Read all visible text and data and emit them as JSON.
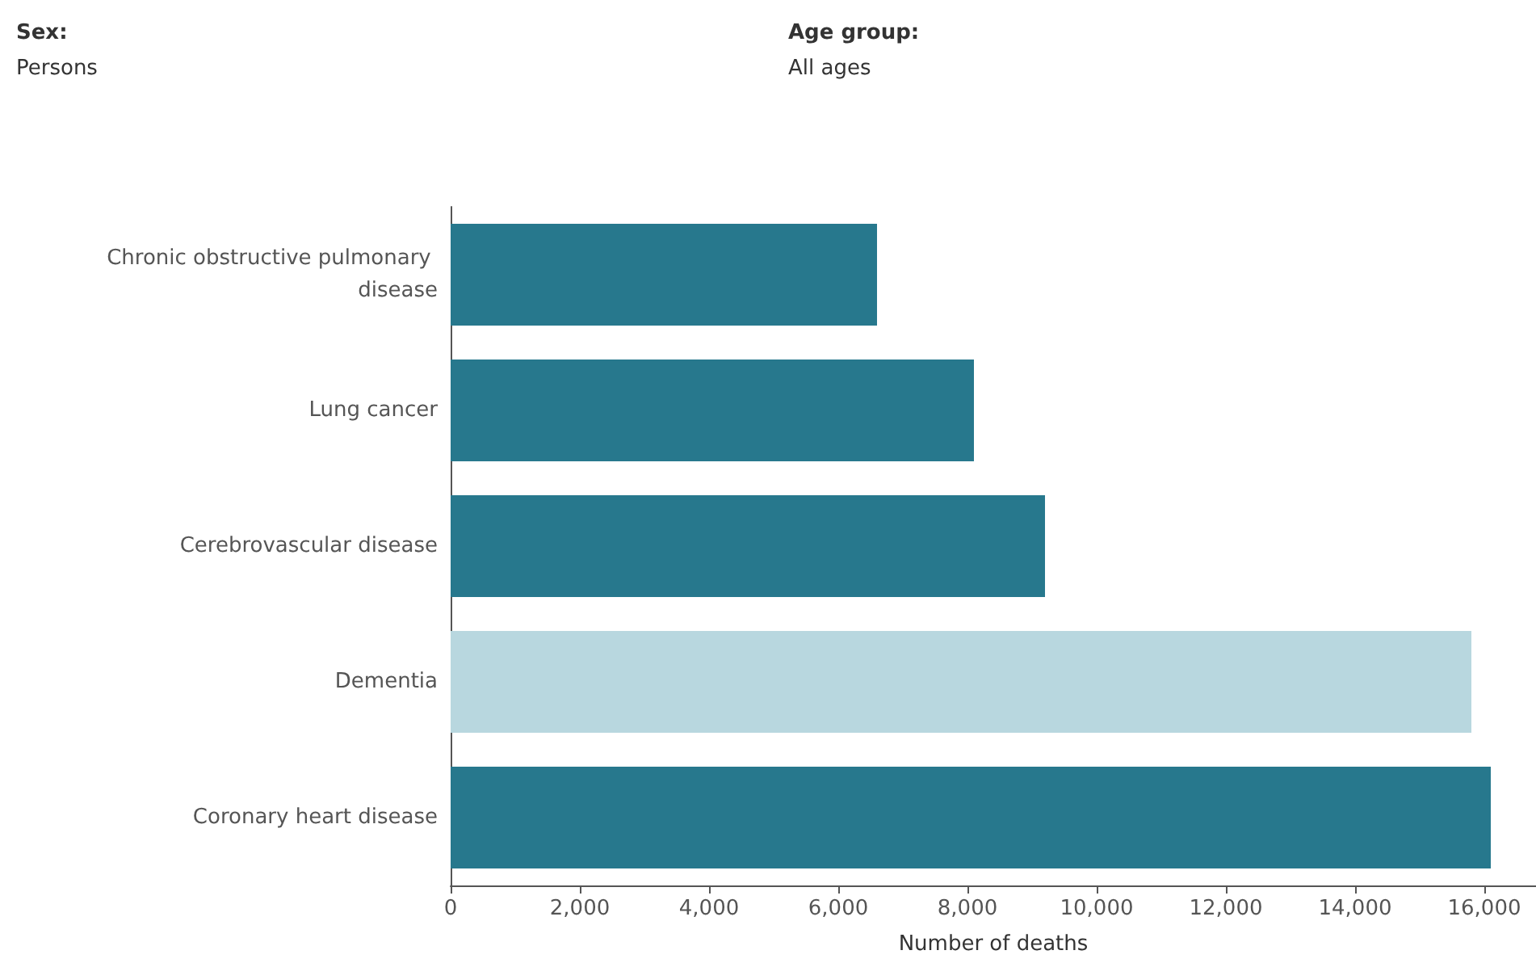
{
  "chart_data": {
    "type": "bar",
    "orientation": "horizontal",
    "xlabel": "Number of deaths",
    "annotations": [
      "Sex:",
      "Persons",
      "Age group:",
      "All ages"
    ],
    "categories": [
      "Chronic obstructive pulmonary disease",
      "Lung cancer",
      "Cerebrovascular disease",
      "Dementia",
      "Coronary heart disease"
    ],
    "values": [
      6600,
      8100,
      9200,
      15800,
      16100
    ],
    "colors": [
      "#27788d",
      "#27788d",
      "#27788d",
      "#b8d7df",
      "#27788d"
    ],
    "xlim": [
      0,
      16800
    ],
    "xticks": [
      0,
      {
        "value": 2000,
        "label": "2,000"
      },
      {
        "value": 4000,
        "label": "4,000"
      },
      {
        "value": 6000,
        "label": "6,000"
      },
      {
        "value": 8000,
        "label": "8,000"
      },
      {
        "value": 10000,
        "label": "10,000"
      },
      {
        "value": 12000,
        "label": "12,000"
      },
      {
        "value": 14000,
        "label": "14,000"
      },
      {
        "value": 16000,
        "label": "16,000"
      }
    ],
    "grid": false
  }
}
